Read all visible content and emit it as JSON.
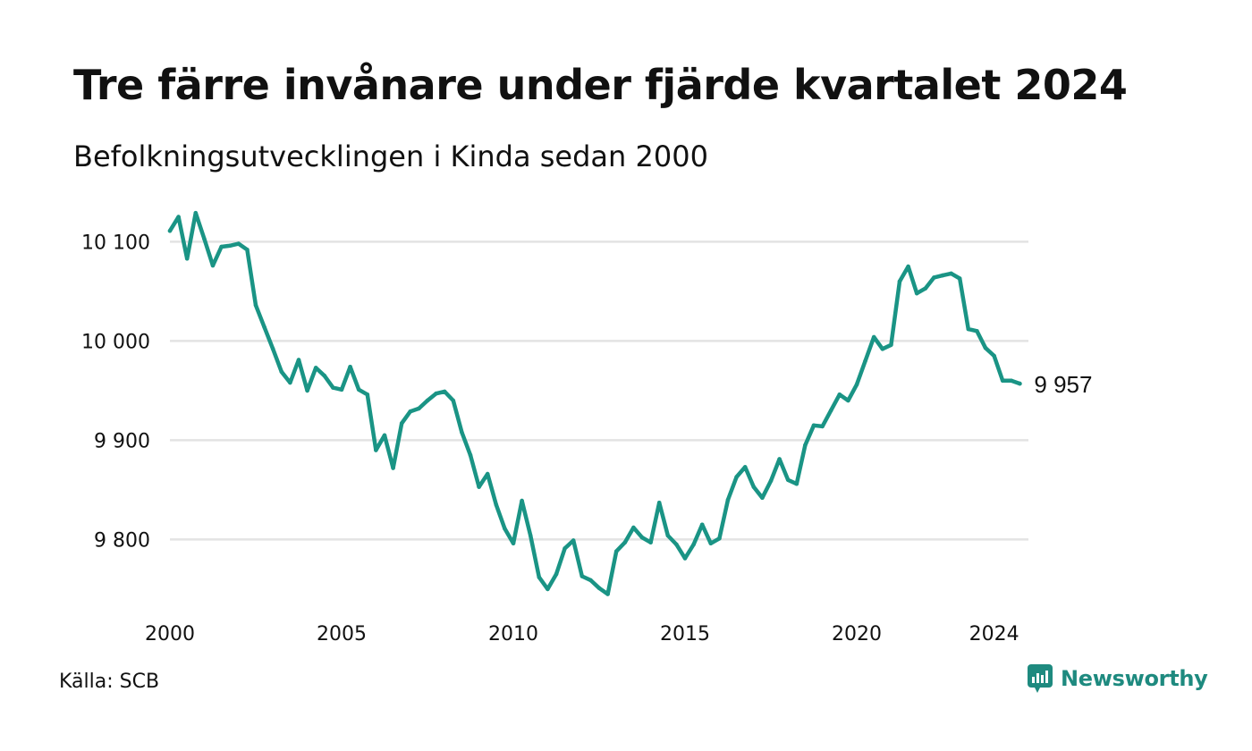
{
  "title": "Tre färre invånare under fjärde kvartalet 2024",
  "subtitle": "Befolkningsutvecklingen i Kinda sedan 2000",
  "source": "Källa: SCB",
  "brand": "Newsworthy",
  "colors": {
    "line": "#1a9485",
    "grid": "#e3e3e3",
    "brand": "#1e8a7f"
  },
  "chart_data": {
    "type": "line",
    "title": "Tre färre invånare under fjärde kvartalet 2024",
    "subtitle": "Befolkningsutvecklingen i Kinda sedan 2000",
    "xlabel": "",
    "ylabel": "",
    "xlim": [
      2000,
      2025
    ],
    "ylim": [
      9740,
      10140
    ],
    "grid": true,
    "x_ticks": [
      {
        "value": 2000,
        "label": "2000"
      },
      {
        "value": 2005,
        "label": "2005"
      },
      {
        "value": 2010,
        "label": "2010"
      },
      {
        "value": 2015,
        "label": "2015"
      },
      {
        "value": 2020,
        "label": "2020"
      },
      {
        "value": 2024,
        "label": "2024"
      }
    ],
    "y_ticks": [
      {
        "value": 9800,
        "label": "9 800"
      },
      {
        "value": 9900,
        "label": "9 900"
      },
      {
        "value": 10000,
        "label": "10 000"
      },
      {
        "value": 10100,
        "label": "10 100"
      }
    ],
    "end_label": "9 957",
    "x": [
      2000.0,
      2000.25,
      2000.5,
      2000.75,
      2001.0,
      2001.25,
      2001.5,
      2001.75,
      2002.0,
      2002.25,
      2002.5,
      2002.75,
      2003.0,
      2003.25,
      2003.5,
      2003.75,
      2004.0,
      2004.25,
      2004.5,
      2004.75,
      2005.0,
      2005.25,
      2005.5,
      2005.75,
      2006.0,
      2006.25,
      2006.5,
      2006.75,
      2007.0,
      2007.25,
      2007.5,
      2007.75,
      2008.0,
      2008.25,
      2008.5,
      2008.75,
      2009.0,
      2009.25,
      2009.5,
      2009.75,
      2010.0,
      2010.25,
      2010.5,
      2010.75,
      2011.0,
      2011.25,
      2011.5,
      2011.75,
      2012.0,
      2012.25,
      2012.5,
      2012.75,
      2013.0,
      2013.25,
      2013.5,
      2013.75,
      2014.0,
      2014.25,
      2014.5,
      2014.75,
      2015.0,
      2015.25,
      2015.5,
      2015.75,
      2016.0,
      2016.25,
      2016.5,
      2016.75,
      2017.0,
      2017.25,
      2017.5,
      2017.75,
      2018.0,
      2018.25,
      2018.5,
      2018.75,
      2019.0,
      2019.25,
      2019.5,
      2019.75,
      2020.0,
      2020.25,
      2020.5,
      2020.75,
      2021.0,
      2021.25,
      2021.5,
      2021.75,
      2022.0,
      2022.25,
      2022.5,
      2022.75,
      2023.0,
      2023.25,
      2023.5,
      2023.75,
      2024.0,
      2024.25,
      2024.5,
      2024.75
    ],
    "values": [
      10111,
      10125,
      10083,
      10129,
      10103,
      10076,
      10095,
      10096,
      10098,
      10092,
      10036,
      10014,
      9992,
      9969,
      9958,
      9981,
      9950,
      9973,
      9965,
      9953,
      9951,
      9974,
      9951,
      9946,
      9890,
      9905,
      9872,
      9917,
      9929,
      9932,
      9940,
      9947,
      9949,
      9940,
      9908,
      9885,
      9853,
      9866,
      9835,
      9811,
      9796,
      9839,
      9804,
      9762,
      9750,
      9765,
      9791,
      9799,
      9763,
      9759,
      9751,
      9745,
      9788,
      9797,
      9812,
      9802,
      9797,
      9837,
      9804,
      9795,
      9781,
      9795,
      9815,
      9796,
      9801,
      9840,
      9863,
      9873,
      9853,
      9842,
      9859,
      9881,
      9860,
      9856,
      9895,
      9915,
      9914,
      9930,
      9946,
      9940,
      9956,
      9980,
      10004,
      9992,
      9996,
      10060,
      10075,
      10048,
      10053,
      10064,
      10066,
      10068,
      10063,
      10012,
      10010,
      9993,
      9985,
      9960,
      9960,
      9957
    ]
  }
}
